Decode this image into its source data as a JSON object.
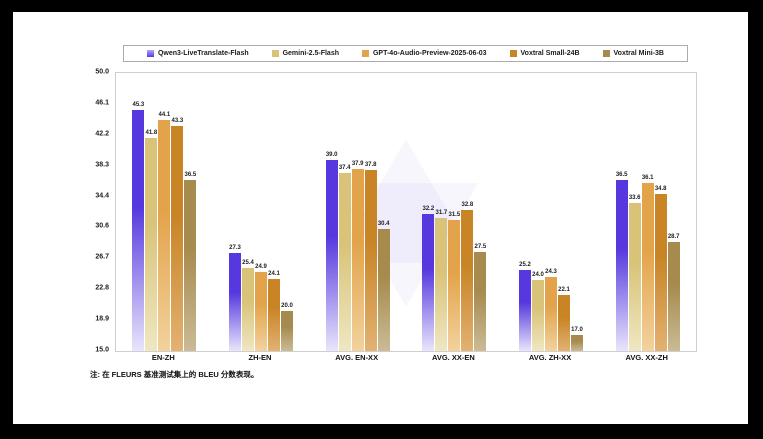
{
  "note": {
    "text": "注: 在 FLEURS 基准测试集上的 BLEU 分数表现。"
  },
  "chart_data": {
    "type": "bar",
    "title": "",
    "xlabel": "",
    "ylabel": "",
    "categories": [
      "EN-ZH",
      "ZH-EN",
      "AVG. EN-XX",
      "AVG. XX-EN",
      "AVG. ZH-XX",
      "AVG. XX-ZH"
    ],
    "series": [
      {
        "name": "Qwen3-LiveTranslate-Flash",
        "color": "#5638de",
        "color_fade": "#e9e5fb",
        "swatch_top": "#b3a6f2",
        "values": [
          45.3,
          27.3,
          39.0,
          32.2,
          25.2,
          36.5
        ]
      },
      {
        "name": "Gemini-2.5-Flash",
        "color": "#d9c378",
        "color_fade": "#efe7c2",
        "values": [
          41.8,
          25.4,
          37.4,
          31.7,
          24.0,
          33.6
        ]
      },
      {
        "name": "GPT-4o-Audio-Preview-2025-06-03",
        "color": "#e3a34a",
        "color_fade": "#f2d29e",
        "values": [
          44.1,
          24.9,
          37.9,
          31.5,
          24.3,
          36.1
        ]
      },
      {
        "name": "Voxtral Small-24B",
        "color": "#c98426",
        "color_fade": "#e2b272",
        "values": [
          43.3,
          24.1,
          37.8,
          32.8,
          22.1,
          34.8
        ]
      },
      {
        "name": "Voxtral Mini-3B",
        "color": "#a78b4e",
        "color_fade": "#cabb96",
        "values": [
          36.5,
          20.0,
          30.4,
          27.5,
          17.0,
          28.7
        ]
      }
    ],
    "ylim": [
      15.0,
      50.0
    ],
    "yticks": [
      50.0,
      46.1,
      42.2,
      38.3,
      34.4,
      30.6,
      26.7,
      22.8,
      18.9,
      15.0
    ],
    "legend_position": "top",
    "grid": false,
    "watermark_color": "rgba(118,100,228,0.06)"
  }
}
